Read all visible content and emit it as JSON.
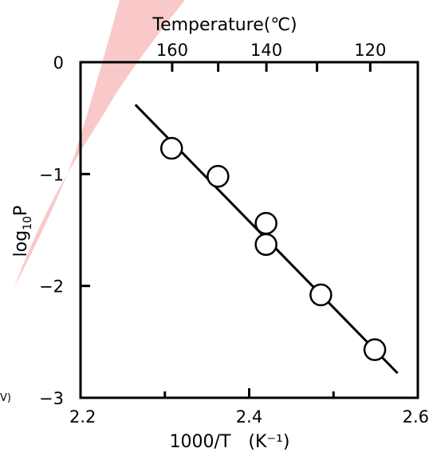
{
  "chart_data": {
    "type": "scatter",
    "xlabel": "1000/T　(K⁻¹)",
    "ylabel_main": "log",
    "ylabel_sub": "10",
    "ylabel_end": "P",
    "top_label": "Temperature(℃)",
    "xlim": [
      2.2,
      2.6
    ],
    "ylim": [
      -3,
      0
    ],
    "x_ticks": [
      2.2,
      2.4,
      2.6
    ],
    "x_tick_labels": [
      "2.2",
      "2.4",
      "2.6"
    ],
    "x_minor_ticks": [
      2.3,
      2.5
    ],
    "y_ticks": [
      0,
      -1,
      -2,
      -3
    ],
    "y_tick_labels": [
      "0",
      "−1",
      "−2",
      "−3"
    ],
    "top_ticks_celsius": [
      160,
      140,
      120
    ],
    "top_tick_labels": [
      "160",
      "140",
      "120"
    ],
    "top_minor_ticks_celsius": [
      150,
      130
    ],
    "points": [
      {
        "x": 2.308,
        "y": -0.77
      },
      {
        "x": 2.363,
        "y": -1.02
      },
      {
        "x": 2.42,
        "y": -1.44
      },
      {
        "x": 2.42,
        "y": -1.63
      },
      {
        "x": 2.485,
        "y": -2.08
      },
      {
        "x": 2.549,
        "y": -2.57
      }
    ],
    "fit_line": {
      "x": [
        2.265,
        2.576
      ],
      "y": [
        -0.38,
        -2.78
      ]
    },
    "marker": "open-circle",
    "background_shape_color": "#f9c9c9"
  },
  "edge_text": "V)"
}
